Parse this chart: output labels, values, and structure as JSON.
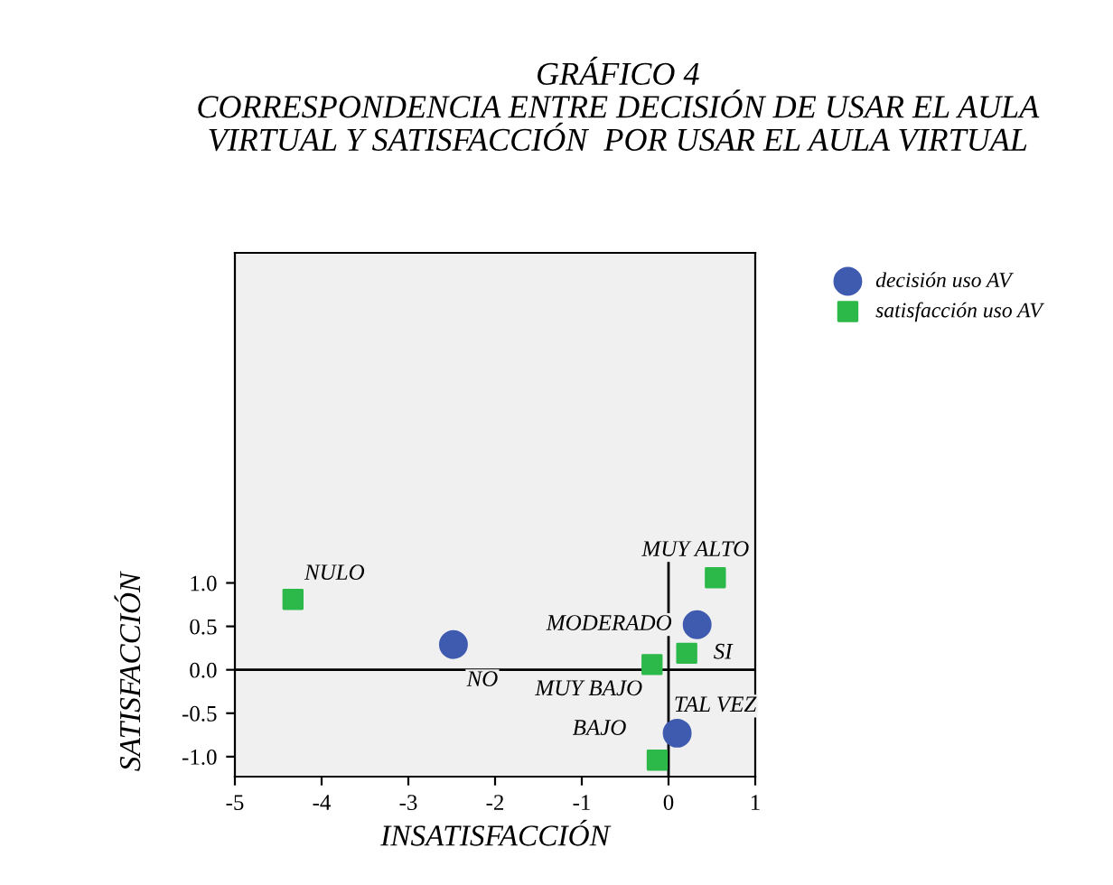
{
  "chart_data": {
    "type": "scatter",
    "title": "GRÁFICO 4\nCORRESPONDENCIA ENTRE DECISIÓN DE USAR EL AULA\nVIRTUAL Y SATISFACCIÓN  POR USAR EL AULA VIRTUAL",
    "xlabel": "INSATISFACCIÓN",
    "ylabel": "SATISFACCIÓN",
    "series": [
      {
        "type": "line",
        "color": "#000000",
        "x": [
          0,
          0
        ],
        "values": [
          -1.23,
          1.23
        ]
      },
      {
        "type": "line",
        "color": "#000000",
        "x": [
          -5,
          1
        ],
        "values": [
          0,
          0
        ]
      },
      {
        "name": "decisión uso AV",
        "color": "#3f5bb0",
        "marker": "circle",
        "x": [
          -2.48,
          0.33,
          0.1
        ],
        "values": [
          0.29,
          0.52,
          -0.73
        ]
      },
      {
        "name": "satisfacción uso AV",
        "color": "#2db84a",
        "marker": "square",
        "x": [
          -4.33,
          0.54,
          0.21,
          -0.19,
          -0.13
        ],
        "values": [
          0.81,
          1.06,
          0.19,
          0.06,
          -1.04
        ]
      }
    ],
    "annotations": [
      {
        "text": "NULO",
        "x": -4.33,
        "y": 0.81
      },
      {
        "text": "NO",
        "x": -2.48,
        "y": 0.29
      },
      {
        "text": "MODERADO",
        "x": 0.33,
        "y": 0.52
      },
      {
        "text": "SI",
        "x": 0.21,
        "y": 0.19
      },
      {
        "text": "MUY BAJO",
        "x": -0.19,
        "y": 0.06
      },
      {
        "text": "MUY ALTO",
        "x": 0.54,
        "y": 1.06
      },
      {
        "text": "TAL VEZ",
        "x": 0.1,
        "y": -0.73
      },
      {
        "text": "BAJO",
        "x": -0.13,
        "y": -1.04
      }
    ],
    "xlim": [
      -5,
      1
    ],
    "xticks": [
      -5,
      -4,
      -3,
      -2,
      -1,
      0,
      1
    ],
    "ylim": [
      -1.23,
      4.8
    ],
    "yticks": [
      {
        "value": -1,
        "label": "-1.0"
      },
      {
        "value": -0.5,
        "label": "-0.5"
      },
      {
        "value": 0,
        "label": "0.0"
      },
      {
        "value": 0.5,
        "label": "0.5"
      },
      {
        "value": 1,
        "label": "1.0"
      }
    ],
    "grid": false,
    "legend": "top right"
  }
}
